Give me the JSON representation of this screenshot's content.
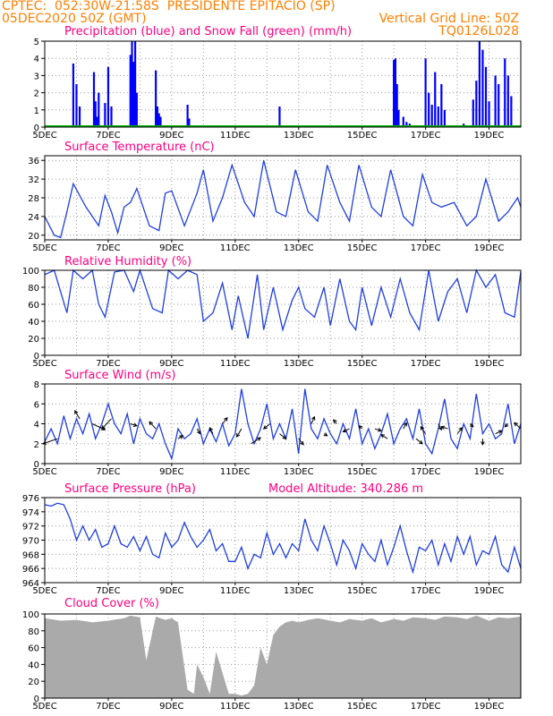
{
  "header": {
    "line1_left": "CPTEC:  052:30W-21:58S  PRESIDENTE EPITACIO (SP)",
    "line2_left": "05DEC2020 50Z (GMT)",
    "line2_right": "Vertical Grid Line: 50Z",
    "line3_right": "TQ0126L028",
    "line3_title": "Precipitation (blue) and Snow Fall (green) (mm/h)",
    "colors": {
      "header": "#ff8000",
      "title": "#ff0080",
      "line": "#1f3fe0",
      "cloud": "#aaaaaa"
    }
  },
  "x_axis": {
    "labels": [
      "5DEC",
      "7DEC",
      "9DEC",
      "11DEC",
      "13DEC",
      "15DEC",
      "17DEC",
      "19DEC"
    ],
    "label_days": [
      5,
      7,
      9,
      11,
      13,
      15,
      17,
      19
    ],
    "range_days": [
      5,
      20
    ]
  },
  "chart_data": [
    {
      "type": "bar",
      "id": "precipitation",
      "title": "",
      "ylim": [
        0,
        5
      ],
      "yticks": [
        0,
        1,
        2,
        3,
        4,
        5
      ],
      "x": [
        5.9,
        6.0,
        6.1,
        6.55,
        6.6,
        6.65,
        6.7,
        6.9,
        7.0,
        7.1,
        7.7,
        7.75,
        7.8,
        7.85,
        7.9,
        8.5,
        8.55,
        8.6,
        8.65,
        9.5,
        9.55,
        12.4,
        16.0,
        16.05,
        16.1,
        16.15,
        16.3,
        16.4,
        16.5,
        17.0,
        17.1,
        17.2,
        17.3,
        17.4,
        17.5,
        17.6,
        18.2,
        18.5,
        18.6,
        18.7,
        18.8,
        18.9,
        19.0,
        19.2,
        19.3,
        19.5,
        19.6,
        19.7
      ],
      "values": [
        3.7,
        2.5,
        1.2,
        3.2,
        1.5,
        0.6,
        2.0,
        1.4,
        3.5,
        1.2,
        4.2,
        5.0,
        3.8,
        5.0,
        2.0,
        3.3,
        1.2,
        0.8,
        0.6,
        1.3,
        0.5,
        1.2,
        3.9,
        4.0,
        2.5,
        1.0,
        0.6,
        0.3,
        0.2,
        4.0,
        2.0,
        1.3,
        3.2,
        1.2,
        2.5,
        1.0,
        0.2,
        1.6,
        2.7,
        5.0,
        4.5,
        3.5,
        1.5,
        3.0,
        2.5,
        4.0,
        3.0,
        1.8
      ],
      "snow_line": 0.05
    },
    {
      "type": "line",
      "id": "surface_temperature",
      "title": "Surface Temperature (nC)",
      "ylim": [
        19,
        37
      ],
      "yticks": [
        20,
        24,
        28,
        32,
        36
      ],
      "x": [
        5.0,
        5.3,
        5.5,
        5.7,
        5.9,
        6.3,
        6.7,
        6.9,
        7.1,
        7.3,
        7.5,
        7.7,
        7.9,
        8.3,
        8.6,
        8.8,
        9.0,
        9.4,
        9.8,
        10.0,
        10.3,
        10.6,
        10.9,
        11.3,
        11.6,
        11.9,
        12.3,
        12.6,
        12.9,
        13.3,
        13.6,
        13.9,
        14.3,
        14.6,
        14.9,
        15.3,
        15.6,
        15.9,
        16.3,
        16.6,
        16.9,
        17.2,
        17.5,
        17.9,
        18.3,
        18.6,
        18.9,
        19.3,
        19.6,
        19.9,
        20.0
      ],
      "values": [
        24,
        20,
        19.5,
        25,
        31,
        26,
        22,
        28.5,
        25,
        20.5,
        26,
        27,
        30,
        22,
        21,
        29,
        29.5,
        22,
        29,
        34,
        23,
        28,
        35,
        27,
        24,
        36,
        25,
        24,
        34,
        25,
        23,
        35,
        27,
        23,
        35,
        26,
        24,
        34,
        24,
        22,
        33,
        27,
        26,
        27,
        22,
        24,
        32,
        23,
        25,
        28,
        26
      ]
    },
    {
      "type": "line",
      "id": "relative_humidity",
      "title": "Relative Humidity (%)",
      "ylim": [
        0,
        100
      ],
      "yticks": [
        0,
        20,
        40,
        60,
        80,
        100
      ],
      "x": [
        5.0,
        5.3,
        5.5,
        5.7,
        5.9,
        6.2,
        6.5,
        6.7,
        6.9,
        7.2,
        7.5,
        7.8,
        8.0,
        8.4,
        8.7,
        8.9,
        9.2,
        9.5,
        9.8,
        10.0,
        10.3,
        10.6,
        10.9,
        11.1,
        11.4,
        11.7,
        11.9,
        12.2,
        12.5,
        12.8,
        13.0,
        13.2,
        13.5,
        13.8,
        14.0,
        14.3,
        14.6,
        14.8,
        15.0,
        15.3,
        15.6,
        15.9,
        16.2,
        16.5,
        16.8,
        17.1,
        17.4,
        17.7,
        18.0,
        18.3,
        18.6,
        18.9,
        19.2,
        19.5,
        19.8,
        20.0
      ],
      "values": [
        95,
        100,
        75,
        50,
        100,
        90,
        100,
        60,
        45,
        98,
        100,
        75,
        100,
        55,
        50,
        100,
        90,
        100,
        95,
        40,
        50,
        85,
        30,
        70,
        20,
        95,
        30,
        80,
        30,
        65,
        80,
        55,
        45,
        80,
        35,
        90,
        40,
        30,
        80,
        35,
        80,
        45,
        90,
        50,
        30,
        100,
        40,
        75,
        90,
        50,
        100,
        80,
        95,
        50,
        45,
        98
      ]
    },
    {
      "type": "line",
      "id": "surface_wind",
      "title": "Surface Wind (m/s)",
      "ylim": [
        0,
        8
      ],
      "yticks": [
        0,
        2,
        4,
        6,
        8
      ],
      "x": [
        5.0,
        5.2,
        5.4,
        5.6,
        5.8,
        6.0,
        6.2,
        6.4,
        6.6,
        6.8,
        7.0,
        7.2,
        7.4,
        7.6,
        7.8,
        8.0,
        8.2,
        8.4,
        8.6,
        8.8,
        9.0,
        9.2,
        9.4,
        9.6,
        9.8,
        10.0,
        10.2,
        10.4,
        10.6,
        10.8,
        11.0,
        11.2,
        11.4,
        11.6,
        11.8,
        12.0,
        12.2,
        12.4,
        12.6,
        12.8,
        13.0,
        13.2,
        13.4,
        13.6,
        13.8,
        14.0,
        14.2,
        14.4,
        14.6,
        14.8,
        15.0,
        15.2,
        15.4,
        15.6,
        15.8,
        16.0,
        16.2,
        16.4,
        16.6,
        16.8,
        17.0,
        17.2,
        17.4,
        17.6,
        17.8,
        18.0,
        18.2,
        18.4,
        18.6,
        18.8,
        19.0,
        19.2,
        19.4,
        19.6,
        19.8,
        20.0
      ],
      "values": [
        2.2,
        3.5,
        2.0,
        4.8,
        2.5,
        4.5,
        3.0,
        5.0,
        2.5,
        4.0,
        6.0,
        4.0,
        3.0,
        5.0,
        2.0,
        4.5,
        3.0,
        2.5,
        4.0,
        2.0,
        0.5,
        3.5,
        2.5,
        3.0,
        4.5,
        2.0,
        3.5,
        2.2,
        4.0,
        1.8,
        3.0,
        7.5,
        4.0,
        2.0,
        3.5,
        6.0,
        2.5,
        4.0,
        2.5,
        5.5,
        1.0,
        7.5,
        3.5,
        2.5,
        4.5,
        3.0,
        2.0,
        4.0,
        2.5,
        5.5,
        2.0,
        3.5,
        1.5,
        3.0,
        5.0,
        2.0,
        3.5,
        4.5,
        2.5,
        5.5,
        2.0,
        1.0,
        3.5,
        6.5,
        2.5,
        1.5,
        4.0,
        2.5,
        7.0,
        3.0,
        4.0,
        2.5,
        3.0,
        6.0,
        2.0,
        4.0
      ],
      "arrows": {
        "x": [
          5.4,
          6.1,
          6.5,
          7.1,
          7.7,
          8.5,
          9.2,
          9.8,
          10.3,
          10.6,
          11.2,
          11.5,
          12.1,
          12.4,
          13.0,
          13.4,
          13.8,
          14.2,
          14.6,
          15.0,
          15.4,
          15.8,
          16.3,
          16.7,
          17.0,
          17.4,
          17.7,
          18.0,
          18.4,
          18.8,
          19.2,
          19.6,
          20.0
        ],
        "y": [
          2.5,
          4.5,
          4.0,
          4.5,
          4.0,
          3.5,
          2.5,
          3.5,
          3.0,
          4.0,
          3.5,
          2.0,
          4.0,
          3.0,
          2.5,
          4.0,
          3.0,
          4.0,
          3.5,
          3.5,
          3.5,
          2.5,
          3.5,
          2.5,
          3.0,
          4.0,
          3.5,
          3.0,
          4.0,
          2.5,
          3.0,
          4.0,
          3.5
        ],
        "dx": [
          -0.45,
          -0.15,
          0.4,
          -0.3,
          0.2,
          -0.2,
          0.15,
          0.1,
          -0.1,
          0.15,
          -0.15,
          0.3,
          -0.2,
          0.2,
          0.15,
          0.1,
          0.1,
          -0.1,
          -0.2,
          -0.1,
          0.2,
          -0.2,
          0.1,
          0.2,
          -0.15,
          0.1,
          -0.2,
          0.15,
          0.1,
          0.0,
          0.2,
          -0.1,
          -0.2
        ],
        "dy": [
          -0.5,
          0.8,
          -0.6,
          -1.0,
          -0.2,
          0.7,
          0.3,
          -0.5,
          0.6,
          0.6,
          -0.8,
          0.6,
          -0.5,
          -0.5,
          -0.6,
          0.7,
          -0.2,
          0.4,
          -0.3,
          0.3,
          -0.2,
          0.4,
          0.6,
          -0.5,
          0.7,
          -0.6,
          0.2,
          0.6,
          -0.3,
          -0.6,
          0.3,
          -0.3,
          0.6
        ]
      }
    },
    {
      "type": "line",
      "id": "surface_pressure",
      "title": "Surface Pressure (hPa)",
      "subtitle": "Model Altitude: 340.286 m",
      "ylim": [
        964,
        976
      ],
      "yticks": [
        964,
        966,
        968,
        970,
        972,
        974,
        976
      ],
      "x": [
        5.0,
        5.2,
        5.4,
        5.6,
        5.8,
        6.0,
        6.2,
        6.4,
        6.6,
        6.8,
        7.0,
        7.2,
        7.4,
        7.6,
        7.8,
        8.0,
        8.2,
        8.4,
        8.6,
        8.8,
        9.0,
        9.2,
        9.4,
        9.6,
        9.8,
        10.0,
        10.2,
        10.4,
        10.6,
        10.8,
        11.0,
        11.2,
        11.4,
        11.6,
        11.8,
        12.0,
        12.2,
        12.4,
        12.6,
        12.8,
        13.0,
        13.2,
        13.4,
        13.6,
        13.8,
        14.0,
        14.2,
        14.4,
        14.6,
        14.8,
        15.0,
        15.2,
        15.4,
        15.6,
        15.8,
        16.0,
        16.2,
        16.4,
        16.6,
        16.8,
        17.0,
        17.2,
        17.4,
        17.6,
        17.8,
        18.0,
        18.2,
        18.4,
        18.6,
        18.8,
        19.0,
        19.2,
        19.4,
        19.6,
        19.8,
        20.0
      ],
      "values": [
        975,
        974.8,
        975.2,
        975.0,
        973.0,
        970.0,
        972.0,
        970.0,
        971.5,
        969.0,
        969.5,
        972.0,
        969.5,
        969.0,
        970.5,
        968.5,
        970.5,
        968.0,
        967.5,
        971.0,
        969.0,
        970.0,
        972.5,
        970.5,
        969.0,
        970.0,
        971.5,
        968.5,
        969.5,
        967.0,
        967.0,
        969.0,
        966.0,
        968.0,
        967.5,
        971.0,
        968.0,
        969.5,
        967.5,
        969.5,
        968.5,
        973.0,
        970.0,
        968.5,
        972.0,
        969.5,
        966.5,
        970.0,
        968.5,
        966.0,
        969.5,
        968.0,
        967.0,
        970.0,
        966.5,
        969.0,
        972.0,
        968.5,
        965.5,
        969.0,
        968.5,
        970.0,
        966.5,
        969.5,
        967.0,
        970.5,
        968.0,
        970.5,
        966.5,
        968.5,
        968.0,
        970.5,
        966.5,
        965.5,
        969.0,
        966.0
      ]
    },
    {
      "type": "area",
      "id": "cloud_cover",
      "title": "Cloud Cover (%)",
      "ylim": [
        0,
        100
      ],
      "yticks": [
        0,
        20,
        40,
        60,
        80,
        100
      ],
      "x": [
        5.0,
        5.5,
        6.0,
        6.5,
        7.0,
        7.5,
        7.7,
        8.0,
        8.2,
        8.5,
        8.8,
        9.0,
        9.2,
        9.5,
        9.7,
        9.8,
        10.0,
        10.2,
        10.4,
        10.6,
        10.8,
        11.0,
        11.2,
        11.4,
        11.6,
        11.8,
        12.0,
        12.2,
        12.4,
        12.6,
        12.8,
        13.0,
        13.3,
        13.6,
        14.0,
        14.3,
        14.6,
        15.0,
        15.3,
        15.6,
        16.0,
        16.3,
        16.6,
        17.0,
        17.3,
        17.6,
        18.0,
        18.3,
        18.6,
        19.0,
        19.3,
        19.6,
        20.0
      ],
      "values": [
        95,
        92,
        93,
        90,
        92,
        95,
        98,
        96,
        45,
        97,
        93,
        95,
        90,
        10,
        5,
        40,
        25,
        5,
        55,
        30,
        5,
        5,
        3,
        5,
        15,
        60,
        40,
        75,
        85,
        90,
        92,
        90,
        93,
        95,
        92,
        90,
        94,
        92,
        95,
        90,
        94,
        92,
        96,
        95,
        93,
        97,
        96,
        94,
        98,
        92,
        96,
        95,
        97
      ]
    }
  ]
}
